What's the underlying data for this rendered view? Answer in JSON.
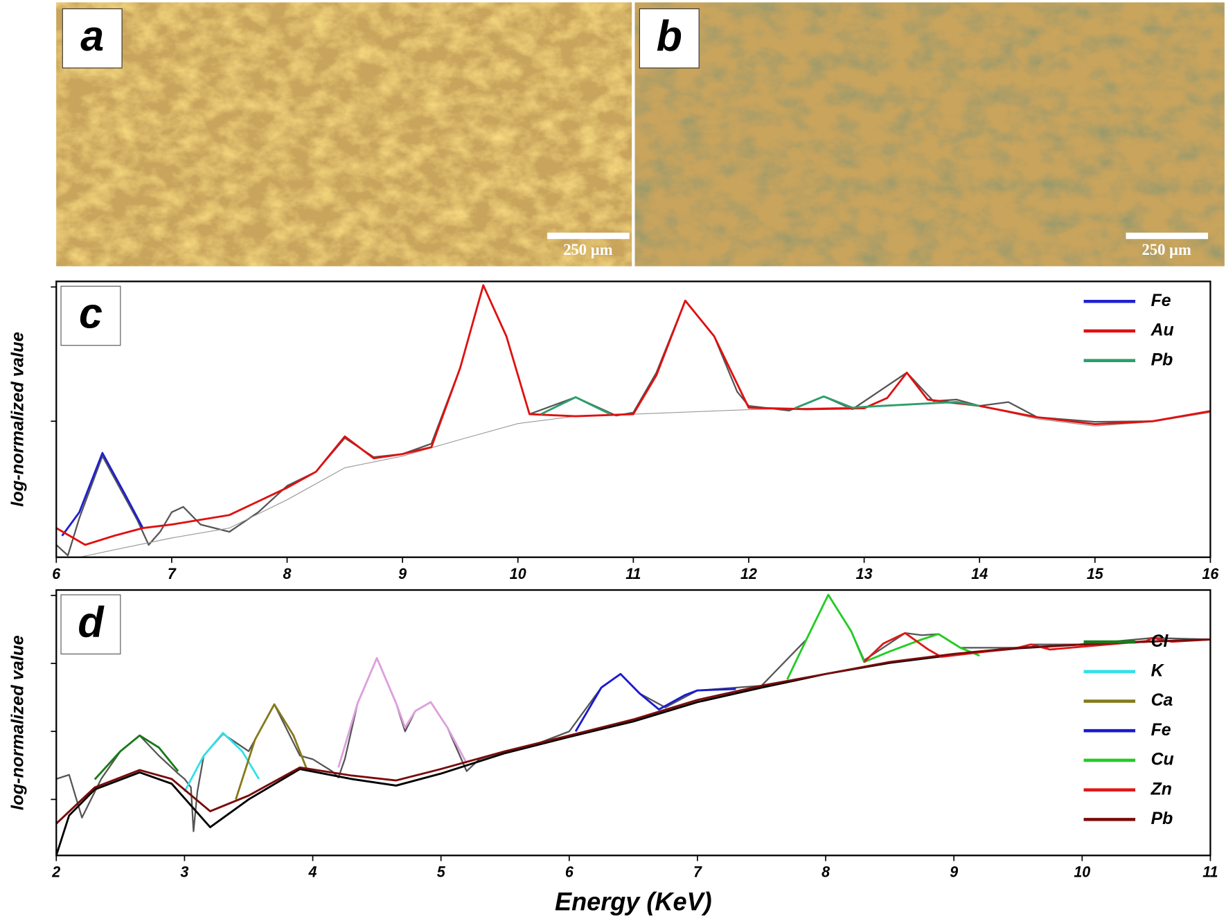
{
  "images": [
    {
      "label": "a",
      "scale_bar": "250 µm"
    },
    {
      "label": "b",
      "scale_bar": "250 µm"
    }
  ],
  "chart_data": [
    {
      "type": "line",
      "panel_label": "c",
      "y_label": "log-normalized value",
      "yscale": "log",
      "legend": "upper right",
      "xlim": [
        6,
        16
      ],
      "xticks": [
        6,
        7,
        8,
        9,
        10,
        11,
        12,
        13,
        14,
        15,
        16
      ],
      "ylim": [
        0.097,
        11
      ],
      "yticks": [
        1,
        10
      ],
      "series": [
        {
          "color": "#555555",
          "width": 2,
          "x": [
            6.0,
            6.1,
            6.2,
            6.4,
            6.7,
            6.8,
            6.9,
            7.0,
            7.1,
            7.25,
            7.5,
            7.75,
            8.0,
            8.25,
            8.5,
            8.75,
            9.0,
            9.25,
            9.5,
            9.7,
            9.9,
            10.1,
            10.5,
            10.85,
            11.0,
            11.2,
            11.45,
            11.7,
            11.9,
            12.0,
            12.35,
            12.65,
            12.9,
            13.37,
            13.6,
            13.8,
            14.0,
            14.25,
            14.5,
            15.0,
            15.5,
            16.0
          ],
          "values": [
            0.12,
            0.1,
            0.19,
            0.55,
            0.185,
            0.12,
            0.15,
            0.21,
            0.23,
            0.17,
            0.15,
            0.21,
            0.33,
            0.42,
            0.75,
            0.54,
            0.57,
            0.68,
            2.5,
            10.3,
            4.3,
            1.13,
            1.51,
            1.1,
            1.16,
            2.3,
            7.9,
            4.3,
            1.66,
            1.3,
            1.2,
            1.53,
            1.23,
            2.3,
            1.41,
            1.45,
            1.3,
            1.39,
            1.07,
            0.99,
            1.0,
            1.18
          ]
        },
        {
          "color": "#999999",
          "width": 1,
          "x": [
            6.2,
            6.5,
            7.0,
            7.5,
            8.0,
            8.5,
            9.0,
            9.5,
            10.0,
            10.5,
            11.0,
            12.0,
            13.0,
            13.7,
            14.0,
            14.5,
            15.0,
            15.5,
            16.0
          ],
          "values": [
            0.097,
            0.11,
            0.135,
            0.16,
            0.26,
            0.45,
            0.55,
            0.73,
            0.96,
            1.09,
            1.13,
            1.22,
            1.28,
            1.37,
            1.3,
            1.04,
            0.92,
            0.99,
            1.16
          ]
        },
        {
          "name": "Fe",
          "color": "#1f1fd0",
          "width": 2.5,
          "x": [
            6.05,
            6.2,
            6.4,
            6.6,
            6.75
          ],
          "values": [
            0.14,
            0.21,
            0.58,
            0.28,
            0.16
          ]
        },
        {
          "name": "Au",
          "color": "#e01010",
          "width": 2.5,
          "x": [
            6.0,
            6.25,
            6.5,
            6.75,
            7.0,
            7.5,
            8.0,
            8.25,
            8.5,
            8.75,
            9.0,
            9.25,
            9.5,
            9.7,
            9.9,
            10.1,
            10.5,
            11.0,
            11.2,
            11.45,
            11.7,
            12.0,
            12.5,
            13.0,
            13.2,
            13.37,
            13.55,
            14.0,
            14.5,
            15.0,
            15.5,
            16.0
          ],
          "values": [
            0.16,
            0.12,
            0.14,
            0.16,
            0.17,
            0.2,
            0.32,
            0.42,
            0.77,
            0.53,
            0.57,
            0.64,
            2.5,
            10.3,
            4.3,
            1.13,
            1.09,
            1.13,
            2.2,
            7.9,
            4.3,
            1.26,
            1.23,
            1.25,
            1.49,
            2.3,
            1.45,
            1.3,
            1.07,
            0.95,
            1.0,
            1.19
          ]
        },
        {
          "name": "Pb",
          "color": "#2e9e6a",
          "width": 2.5,
          "x": [
            10.2,
            10.5,
            10.8,
            null,
            12.4,
            12.65,
            12.9,
            13.0,
            13.5,
            13.8,
            14.0
          ],
          "values": [
            1.13,
            1.51,
            1.13,
            null,
            1.25,
            1.53,
            1.26,
            1.28,
            1.35,
            1.39,
            1.3
          ]
        }
      ]
    },
    {
      "type": "line",
      "panel_label": "d",
      "y_label": "log-normalized value",
      "x_label": "Energy (KeV)",
      "yscale": "log",
      "legend": "center right",
      "xlim": [
        2,
        11
      ],
      "xticks": [
        2,
        3,
        4,
        5,
        6,
        7,
        8,
        9,
        10,
        11
      ],
      "ylim": [
        0.15,
        1200
      ],
      "yticks": [
        1,
        10,
        100,
        1000
      ],
      "series": [
        {
          "color": "#555555",
          "width": 2,
          "x": [
            2.0,
            2.1,
            2.2,
            2.35,
            2.5,
            2.65,
            2.8,
            2.95,
            3.0,
            3.05,
            3.07,
            3.1,
            3.15,
            3.3,
            3.5,
            3.7,
            3.9,
            4.0,
            4.15,
            4.2,
            4.25,
            4.35,
            4.5,
            4.65,
            4.72,
            4.8,
            4.92,
            5.05,
            5.2,
            5.3,
            5.5,
            5.75,
            6.0,
            6.25,
            6.4,
            6.55,
            6.75,
            7.0,
            7.5,
            7.85,
            8.02,
            8.2,
            8.3,
            8.62,
            8.75,
            8.88,
            9.05,
            9.5,
            9.6,
            10.0,
            10.55,
            11.0
          ],
          "values": [
            2.0,
            2.3,
            0.54,
            2.0,
            5.1,
            8.7,
            4.4,
            2.4,
            2.0,
            1.5,
            0.34,
            1.3,
            4.4,
            9.2,
            5.1,
            25,
            4.4,
            3.9,
            2.6,
            2.1,
            3.9,
            26,
            120,
            26,
            10,
            20,
            27,
            11.4,
            2.6,
            3.9,
            5.1,
            6.6,
            10,
            44,
            70,
            36,
            22.5,
            40,
            47,
            225,
            1020,
            295,
            111,
            280,
            260,
            270,
            170,
            170,
            190,
            190,
            237,
            225
          ]
        },
        {
          "color": "#000000",
          "width": 2.5,
          "x": [
            2.0,
            2.1,
            2.3,
            2.65,
            2.9,
            3.2,
            3.5,
            3.9,
            4.3,
            4.65,
            5.0,
            5.5,
            6.0,
            6.5,
            7.0,
            7.5,
            8.0,
            8.5,
            9.0,
            9.5,
            10.0,
            10.5,
            11.0
          ],
          "values": [
            0.15,
            0.58,
            1.4,
            2.5,
            1.7,
            0.39,
            1.0,
            2.8,
            2.0,
            1.6,
            2.4,
            4.8,
            8.3,
            14,
            27,
            44,
            70,
            102,
            134,
            167,
            190,
            208,
            225
          ]
        },
        {
          "color": "#dda0dd",
          "width": 2.5,
          "x": [
            4.2,
            4.35,
            4.5,
            4.65,
            4.72,
            4.8,
            4.92,
            5.05,
            5.2
          ],
          "values": [
            2.95,
            26,
            120,
            26,
            11.4,
            20,
            27,
            11.4,
            3.4
          ]
        },
        {
          "name": "Cl",
          "color": "#1a7a1a",
          "width": 2.5,
          "x": [
            2.3,
            2.5,
            2.65,
            2.8,
            2.95
          ],
          "values": [
            1.97,
            5.1,
            8.7,
            5.8,
            2.6
          ]
        },
        {
          "name": "K",
          "color": "#33e0e8",
          "width": 2.5,
          "x": [
            3.0,
            3.15,
            3.3,
            3.45,
            3.58
          ],
          "values": [
            1.3,
            4.4,
            9.5,
            5.1,
            2.0
          ]
        },
        {
          "name": "Ca",
          "color": "#857a1a",
          "width": 2.5,
          "x": [
            3.4,
            3.55,
            3.7,
            3.85,
            3.95
          ],
          "values": [
            1.0,
            7.6,
            25,
            8.7,
            2.9
          ]
        },
        {
          "name": "Fe",
          "color": "#1a1ad0",
          "width": 2.5,
          "x": [
            6.05,
            6.25,
            6.4,
            6.55,
            6.7,
            6.9,
            7.0,
            7.3
          ],
          "values": [
            10,
            44,
            70,
            36,
            21,
            34,
            40,
            42
          ]
        },
        {
          "name": "Cu",
          "color": "#22cc22",
          "width": 2.5,
          "x": [
            7.7,
            7.85,
            8.02,
            8.2,
            8.3,
            8.5,
            8.75,
            8.88,
            9.05,
            9.2
          ],
          "values": [
            58,
            225,
            1020,
            295,
            105,
            150,
            225,
            270,
            170,
            130
          ]
        },
        {
          "name": "Zn",
          "color": "#e01818",
          "width": 2.5,
          "x": [
            8.3,
            8.45,
            8.62,
            8.8,
            8.9,
            9.5,
            9.6,
            9.75,
            10.5,
            10.55,
            10.7,
            11.0
          ],
          "values": [
            105,
            196,
            280,
            160,
            125,
            170,
            190,
            160,
            213,
            237,
            208,
            225
          ]
        },
        {
          "name": "Pb",
          "color": "#7a0a0a",
          "width": 2.5,
          "x": [
            2.0,
            2.3,
            2.65,
            2.9,
            3.2,
            3.5,
            3.9,
            4.3,
            4.65,
            5.0,
            5.5,
            6.0,
            6.5,
            7.0,
            7.5,
            8.0,
            8.5,
            9.0,
            9.5,
            10.0,
            10.5,
            11.0
          ],
          "values": [
            0.44,
            1.5,
            2.7,
            2.0,
            0.67,
            1.14,
            2.95,
            2.25,
            1.9,
            2.8,
            5.1,
            8.7,
            15,
            29,
            47,
            70,
            105,
            138,
            170,
            190,
            208,
            225
          ]
        }
      ]
    }
  ]
}
